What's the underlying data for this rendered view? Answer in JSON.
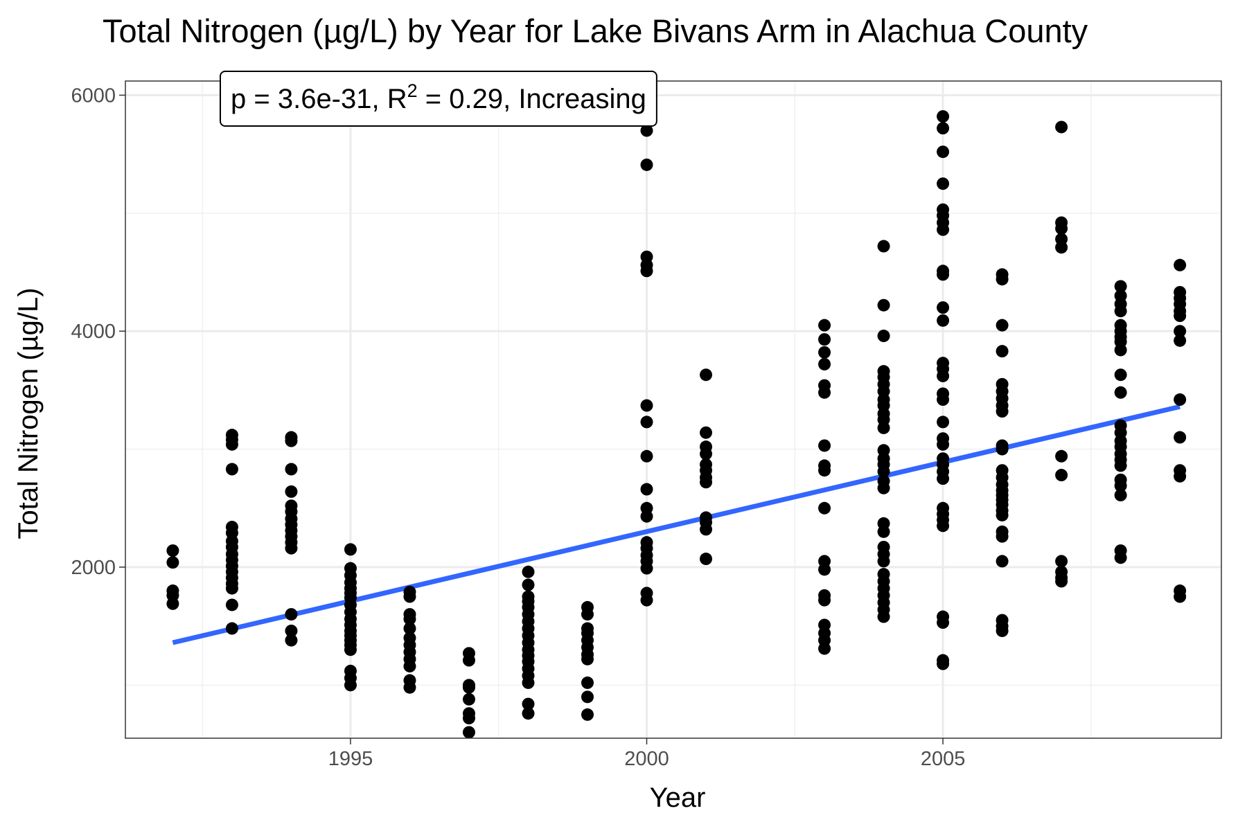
{
  "chart_data": {
    "type": "scatter",
    "title": "Total Nitrogen (µg/L) by Year for Lake Bivans Arm in Alachua County",
    "xlabel": "Year",
    "ylabel": "Total Nitrogen (µg/L)",
    "xlim": [
      1991.2,
      2009.7
    ],
    "ylim": [
      550,
      6120
    ],
    "x_ticks": [
      1995,
      2000,
      2005
    ],
    "y_ticks": [
      2000,
      4000,
      6000
    ],
    "grid": true,
    "annotation": {
      "p": "p = 3.6e-31",
      "r2_prefix": "R",
      "r2_sup": "2",
      "r2_value": " = 0.29",
      "trend": "Increasing"
    },
    "trend_line": {
      "color": "#3366ff",
      "x": [
        1992,
        2009
      ],
      "y": [
        1360,
        3360
      ]
    },
    "points_color": "#000000",
    "points": [
      {
        "year": 1992,
        "values": [
          2140,
          2040,
          1800,
          1760,
          1690
        ]
      },
      {
        "year": 1993,
        "values": [
          3120,
          3080,
          3040,
          2830,
          2340,
          2290,
          2220,
          2170,
          2110,
          2060,
          2010,
          1960,
          1910,
          1860,
          1820,
          1680,
          1480
        ]
      },
      {
        "year": 1994,
        "values": [
          3100,
          3070,
          2830,
          2640,
          2520,
          2470,
          2410,
          2360,
          2310,
          2260,
          2210,
          2160,
          1600,
          1460,
          1380
        ]
      },
      {
        "year": 1995,
        "values": [
          2150,
          1990,
          1930,
          1870,
          1820,
          1780,
          1740,
          1680,
          1620,
          1560,
          1510,
          1460,
          1420,
          1380,
          1340,
          1300,
          1120,
          1060,
          1000
        ]
      },
      {
        "year": 1996,
        "values": [
          1790,
          1750,
          1600,
          1560,
          1480,
          1400,
          1340,
          1280,
          1220,
          1160,
          1040,
          980
        ]
      },
      {
        "year": 1997,
        "values": [
          1270,
          1210,
          1000,
          980,
          880,
          760,
          720,
          600
        ]
      },
      {
        "year": 1998,
        "values": [
          1960,
          1850,
          1750,
          1710,
          1660,
          1600,
          1540,
          1480,
          1420,
          1360,
          1300,
          1250,
          1200,
          1140,
          1080,
          1020,
          840,
          760
        ]
      },
      {
        "year": 1999,
        "values": [
          1660,
          1600,
          1480,
          1440,
          1380,
          1320,
          1260,
          1220,
          1020,
          900,
          750
        ]
      },
      {
        "year": 2000,
        "values": [
          5700,
          5410,
          4630,
          4560,
          4510,
          3370,
          3230,
          2940,
          2660,
          2500,
          2430,
          2210,
          2160,
          2100,
          2050,
          1990,
          1780,
          1720
        ]
      },
      {
        "year": 2001,
        "values": [
          3630,
          3140,
          3020,
          2960,
          2870,
          2820,
          2760,
          2720,
          2420,
          2380,
          2320,
          2070
        ]
      },
      {
        "year": 2002,
        "values": []
      },
      {
        "year": 2003,
        "values": [
          4050,
          3930,
          3820,
          3720,
          3540,
          3480,
          3030,
          2860,
          2820,
          2500,
          2050,
          1980,
          1760,
          1720,
          1510,
          1440,
          1380,
          1310
        ]
      },
      {
        "year": 2004,
        "values": [
          4720,
          4220,
          3960,
          3660,
          3610,
          3550,
          3490,
          3420,
          3370,
          3300,
          3250,
          3180,
          2990,
          2920,
          2870,
          2810,
          2730,
          2670,
          2370,
          2300,
          2170,
          2110,
          2050,
          1940,
          1880,
          1820,
          1760,
          1700,
          1640,
          1580
        ]
      },
      {
        "year": 2005,
        "values": [
          5820,
          5720,
          5520,
          5250,
          5030,
          4980,
          4920,
          4860,
          4510,
          4480,
          4200,
          4090,
          3730,
          3680,
          3620,
          3470,
          3420,
          3230,
          3090,
          3040,
          2920,
          2870,
          2810,
          2750,
          2500,
          2450,
          2400,
          2350,
          1580,
          1530,
          1210,
          1180
        ]
      },
      {
        "year": 2006,
        "values": [
          4480,
          4440,
          4050,
          3830,
          3550,
          3490,
          3430,
          3370,
          3320,
          3030,
          3000,
          2820,
          2760,
          2700,
          2650,
          2610,
          2570,
          2530,
          2480,
          2440,
          2300,
          2260,
          2050,
          1550,
          1500,
          1460
        ]
      },
      {
        "year": 2007,
        "values": [
          5730,
          4920,
          4870,
          4780,
          4710,
          2940,
          2780,
          2050,
          1960,
          1910,
          1880
        ]
      },
      {
        "year": 2008,
        "values": [
          4380,
          4300,
          4230,
          4170,
          4050,
          4000,
          3950,
          3910,
          3840,
          3630,
          3480,
          3200,
          3140,
          3070,
          3020,
          2960,
          2910,
          2860,
          2740,
          2690,
          2610,
          2140,
          2080
        ]
      },
      {
        "year": 2009,
        "values": [
          4560,
          4330,
          4280,
          4230,
          4170,
          4130,
          4000,
          3920,
          3420,
          3100,
          2820,
          2770,
          1800,
          1750
        ]
      }
    ]
  }
}
